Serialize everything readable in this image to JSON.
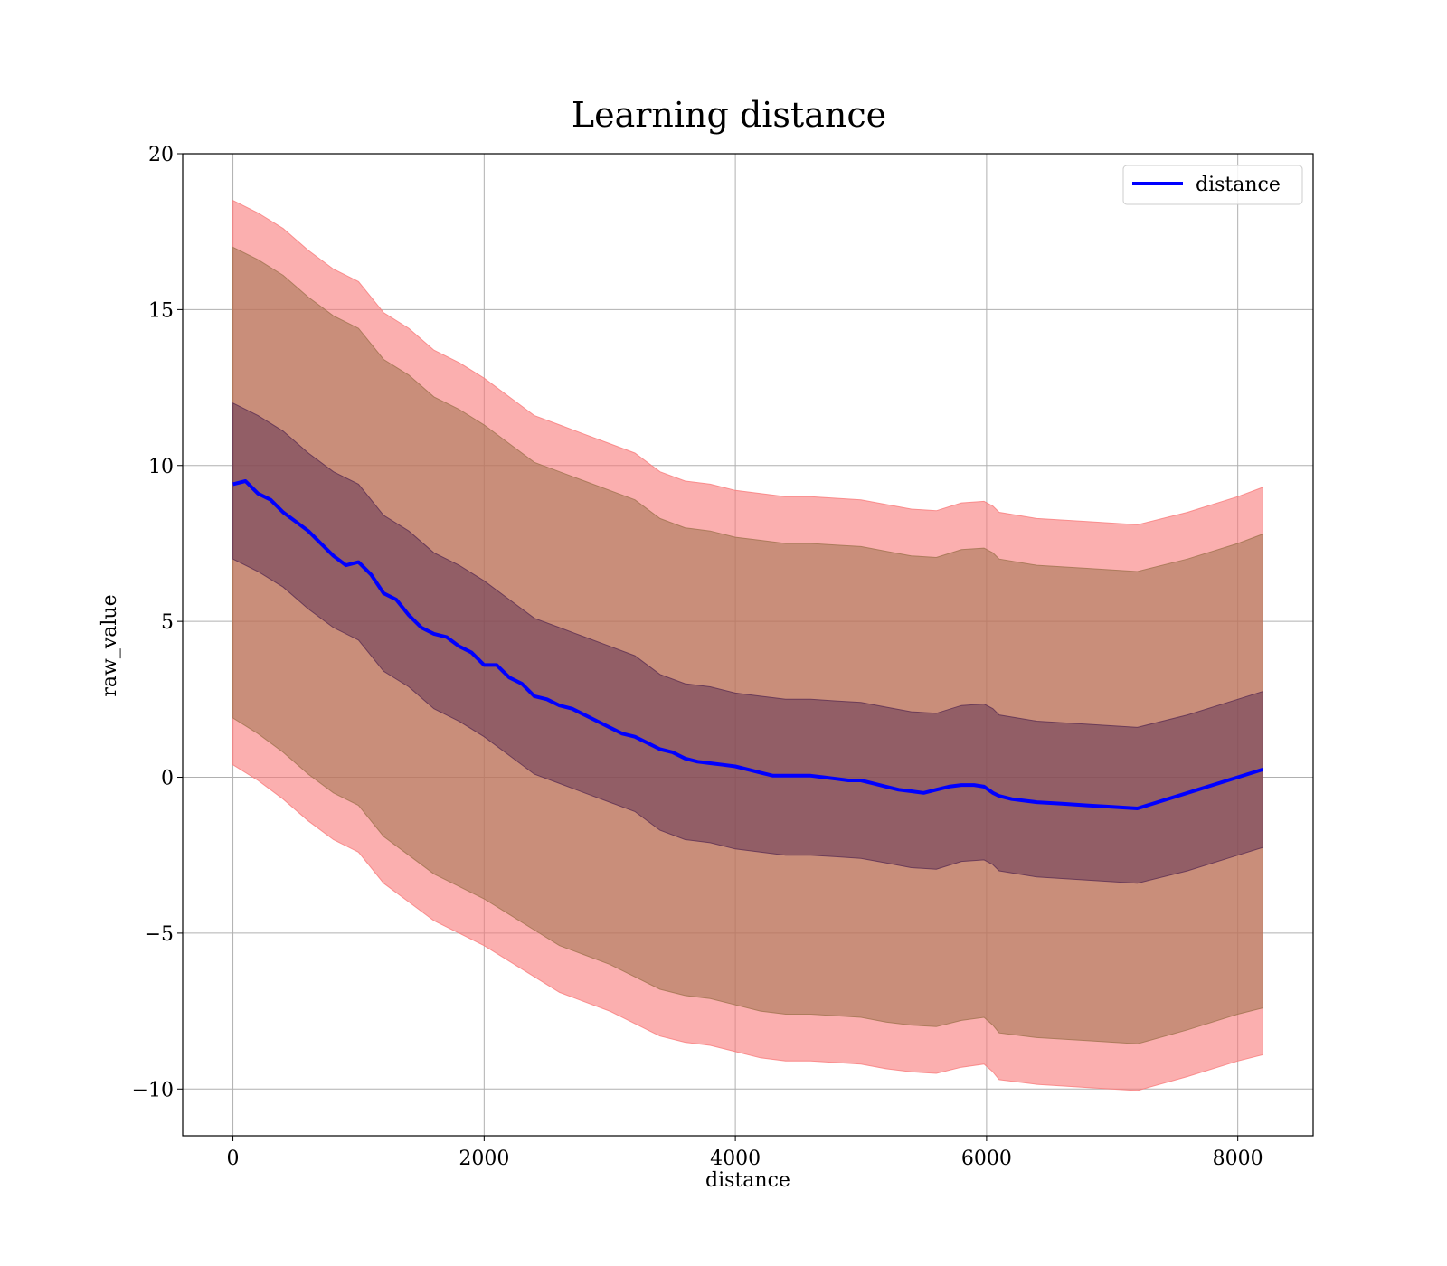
{
  "chart_data": {
    "type": "line",
    "title": "Learning distance",
    "xlabel": "distance",
    "ylabel": "raw_value",
    "xlim": [
      -400,
      8600
    ],
    "ylim": [
      -11.5,
      20
    ],
    "xticks": [
      0,
      2000,
      4000,
      6000,
      8000
    ],
    "yticks": [
      -10,
      -5,
      0,
      5,
      10,
      15,
      20
    ],
    "xtick_labels": [
      "0",
      "2000",
      "4000",
      "6000",
      "8000"
    ],
    "ytick_labels": [
      "−10",
      "−5",
      "0",
      "5",
      "10",
      "15",
      "20"
    ],
    "grid": true,
    "legend_position": "top-right",
    "colors": {
      "line": "#0000ff",
      "outer_band": "#f97a7a",
      "middle_band": "#a0734f",
      "inner_band": "#5b2e52"
    },
    "series": [
      {
        "name": "distance",
        "x": [
          0,
          100,
          200,
          300,
          400,
          500,
          600,
          700,
          800,
          900,
          1000,
          1100,
          1200,
          1300,
          1400,
          1500,
          1600,
          1700,
          1800,
          1900,
          2000,
          2100,
          2200,
          2300,
          2400,
          2500,
          2600,
          2700,
          2800,
          2900,
          3000,
          3100,
          3200,
          3300,
          3400,
          3500,
          3600,
          3700,
          3800,
          3900,
          4000,
          4100,
          4200,
          4300,
          4400,
          4500,
          4600,
          4700,
          4800,
          4900,
          5000,
          5100,
          5200,
          5300,
          5400,
          5500,
          5600,
          5700,
          5800,
          5900,
          5980,
          6050,
          6100,
          6200,
          6400,
          6600,
          6800,
          7000,
          7200,
          7600,
          8000,
          8200
        ],
        "y": [
          9.4,
          9.5,
          9.1,
          8.9,
          8.5,
          8.2,
          7.9,
          7.5,
          7.1,
          6.8,
          6.9,
          6.5,
          5.9,
          5.7,
          5.2,
          4.8,
          4.6,
          4.5,
          4.2,
          4.0,
          3.6,
          3.6,
          3.2,
          3.0,
          2.6,
          2.5,
          2.3,
          2.2,
          2.0,
          1.8,
          1.6,
          1.4,
          1.3,
          1.1,
          0.9,
          0.8,
          0.6,
          0.5,
          0.45,
          0.4,
          0.35,
          0.25,
          0.15,
          0.05,
          0.05,
          0.05,
          0.05,
          0.0,
          -0.05,
          -0.1,
          -0.1,
          -0.2,
          -0.3,
          -0.4,
          -0.45,
          -0.5,
          -0.4,
          -0.3,
          -0.25,
          -0.25,
          -0.3,
          -0.5,
          -0.6,
          -0.7,
          -0.8,
          -0.85,
          -0.9,
          -0.95,
          -1.0,
          -0.5,
          0.0,
          0.25
        ]
      },
      {
        "name": "",
        "x": [
          0,
          200,
          400,
          600,
          800,
          1000,
          1200,
          1400,
          1600,
          1800,
          2000,
          2200,
          2400,
          2600,
          2800,
          3000,
          3200,
          3400,
          3600,
          3800,
          4000,
          4200,
          4400,
          4600,
          4800,
          5000,
          5200,
          5400,
          5600,
          5800,
          5980,
          6050,
          6100,
          6400,
          6800,
          7200,
          7600,
          8000,
          8200
        ],
        "y": [
          18.5,
          18.1,
          17.6,
          16.9,
          16.3,
          15.9,
          14.9,
          14.4,
          13.7,
          13.3,
          12.8,
          12.2,
          11.6,
          11.3,
          11.0,
          10.7,
          10.4,
          9.8,
          9.5,
          9.4,
          9.2,
          9.1,
          9.0,
          9.0,
          8.95,
          8.9,
          8.75,
          8.6,
          8.55,
          8.8,
          8.85,
          8.7,
          8.5,
          8.3,
          8.2,
          8.1,
          8.5,
          9.0,
          9.3
        ]
      },
      {
        "name": "",
        "x": [
          0,
          200,
          400,
          600,
          800,
          1000,
          1200,
          1400,
          1600,
          1800,
          2000,
          2200,
          2400,
          2600,
          2800,
          3000,
          3200,
          3400,
          3600,
          3800,
          4000,
          4200,
          4400,
          4600,
          4800,
          5000,
          5200,
          5400,
          5600,
          5800,
          5980,
          6050,
          6100,
          6400,
          6800,
          7200,
          7600,
          8000,
          8200
        ],
        "y": [
          0.4,
          -0.1,
          -0.7,
          -1.4,
          -2.0,
          -2.4,
          -3.4,
          -4.0,
          -4.6,
          -5.0,
          -5.4,
          -5.9,
          -6.4,
          -6.9,
          -7.2,
          -7.5,
          -7.9,
          -8.3,
          -8.5,
          -8.6,
          -8.8,
          -9.0,
          -9.1,
          -9.1,
          -9.15,
          -9.2,
          -9.35,
          -9.45,
          -9.5,
          -9.3,
          -9.2,
          -9.45,
          -9.7,
          -9.85,
          -9.95,
          -10.05,
          -9.6,
          -9.1,
          -8.9
        ]
      },
      {
        "name": "",
        "x": [
          0,
          200,
          400,
          600,
          800,
          1000,
          1200,
          1400,
          1600,
          1800,
          2000,
          2200,
          2400,
          2600,
          2800,
          3000,
          3200,
          3400,
          3600,
          3800,
          4000,
          4200,
          4400,
          4600,
          4800,
          5000,
          5200,
          5400,
          5600,
          5800,
          5980,
          6050,
          6100,
          6400,
          6800,
          7200,
          7600,
          8000,
          8200
        ],
        "y": [
          17.0,
          16.6,
          16.1,
          15.4,
          14.8,
          14.4,
          13.4,
          12.9,
          12.2,
          11.8,
          11.3,
          10.7,
          10.1,
          9.8,
          9.5,
          9.2,
          8.9,
          8.3,
          8.0,
          7.9,
          7.7,
          7.6,
          7.5,
          7.5,
          7.45,
          7.4,
          7.25,
          7.1,
          7.05,
          7.3,
          7.35,
          7.2,
          7.0,
          6.8,
          6.7,
          6.6,
          7.0,
          7.5,
          7.8
        ]
      },
      {
        "name": "",
        "x": [
          0,
          200,
          400,
          600,
          800,
          1000,
          1200,
          1400,
          1600,
          1800,
          2000,
          2200,
          2400,
          2600,
          2800,
          3000,
          3200,
          3400,
          3600,
          3800,
          4000,
          4200,
          4400,
          4600,
          4800,
          5000,
          5200,
          5400,
          5600,
          5800,
          5980,
          6050,
          6100,
          6400,
          6800,
          7200,
          7600,
          8000,
          8200
        ],
        "y": [
          1.9,
          1.4,
          0.8,
          0.1,
          -0.5,
          -0.9,
          -1.9,
          -2.5,
          -3.1,
          -3.5,
          -3.9,
          -4.4,
          -4.9,
          -5.4,
          -5.7,
          -6.0,
          -6.4,
          -6.8,
          -7.0,
          -7.1,
          -7.3,
          -7.5,
          -7.6,
          -7.6,
          -7.65,
          -7.7,
          -7.85,
          -7.95,
          -8.0,
          -7.8,
          -7.7,
          -7.95,
          -8.2,
          -8.35,
          -8.45,
          -8.55,
          -8.1,
          -7.6,
          -7.4
        ]
      },
      {
        "name": "",
        "x": [
          0,
          200,
          400,
          600,
          800,
          1000,
          1200,
          1400,
          1600,
          1800,
          2000,
          2200,
          2400,
          2600,
          2800,
          3000,
          3200,
          3400,
          3600,
          3800,
          4000,
          4200,
          4400,
          4600,
          4800,
          5000,
          5200,
          5400,
          5600,
          5800,
          5980,
          6050,
          6100,
          6400,
          6800,
          7200,
          7600,
          8000,
          8200
        ],
        "y": [
          12.0,
          11.6,
          11.1,
          10.4,
          9.8,
          9.4,
          8.4,
          7.9,
          7.2,
          6.8,
          6.3,
          5.7,
          5.1,
          4.8,
          4.5,
          4.2,
          3.9,
          3.3,
          3.0,
          2.9,
          2.7,
          2.6,
          2.5,
          2.5,
          2.45,
          2.4,
          2.25,
          2.1,
          2.05,
          2.3,
          2.35,
          2.2,
          2.0,
          1.8,
          1.7,
          1.6,
          2.0,
          2.5,
          2.75
        ]
      },
      {
        "name": "",
        "x": [
          0,
          200,
          400,
          600,
          800,
          1000,
          1200,
          1400,
          1600,
          1800,
          2000,
          2200,
          2400,
          2600,
          2800,
          3000,
          3200,
          3400,
          3600,
          3800,
          4000,
          4200,
          4400,
          4600,
          4800,
          5000,
          5200,
          5400,
          5600,
          5800,
          5980,
          6050,
          6100,
          6400,
          6800,
          7200,
          7600,
          8000,
          8200
        ],
        "y": [
          7.0,
          6.6,
          6.1,
          5.4,
          4.8,
          4.4,
          3.4,
          2.9,
          2.2,
          1.8,
          1.3,
          0.7,
          0.1,
          -0.2,
          -0.5,
          -0.8,
          -1.1,
          -1.7,
          -2.0,
          -2.1,
          -2.3,
          -2.4,
          -2.5,
          -2.5,
          -2.55,
          -2.6,
          -2.75,
          -2.9,
          -2.95,
          -2.7,
          -2.65,
          -2.8,
          -3.0,
          -3.2,
          -3.3,
          -3.4,
          -3.0,
          -2.5,
          -2.25
        ]
      }
    ]
  }
}
